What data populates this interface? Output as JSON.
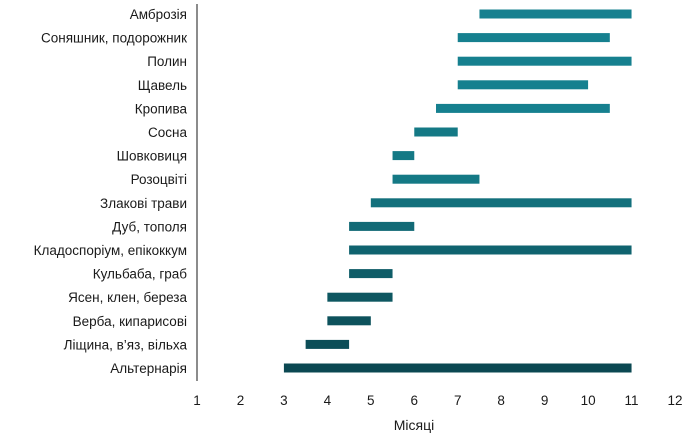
{
  "chart_data": {
    "type": "bar",
    "orientation": "horizontal-range",
    "xlabel": "Місяці",
    "xlim": [
      1,
      12
    ],
    "xticks": [
      1,
      2,
      3,
      4,
      5,
      6,
      7,
      8,
      9,
      10,
      11,
      12
    ],
    "grid": false,
    "categories": [
      "Амброзія",
      "Соняшник, подорожник",
      "Полин",
      "Щавель",
      "Кропива",
      "Сосна",
      "Шовковиця",
      "Розоцвіті",
      "Злакові трави",
      "Дуб, тополя",
      "Кладоспоріум, епікоккум",
      "Кульбаба, граб",
      "Ясен, клен, береза",
      "Верба, кипарисові",
      "Ліщина, в’яз, вільха",
      "Альтернарія"
    ],
    "ranges": [
      [
        7.5,
        11
      ],
      [
        7,
        10.5
      ],
      [
        7,
        11
      ],
      [
        7,
        10
      ],
      [
        6.5,
        10.5
      ],
      [
        6,
        7
      ],
      [
        5.5,
        6
      ],
      [
        5.5,
        7.5
      ],
      [
        5,
        11
      ],
      [
        4.5,
        6
      ],
      [
        4.5,
        11
      ],
      [
        4.5,
        5.5
      ],
      [
        4,
        5.5
      ],
      [
        4,
        5
      ],
      [
        3.5,
        4.5
      ],
      [
        3,
        11
      ]
    ],
    "colors": [
      "#16808f",
      "#16808f",
      "#16808f",
      "#16808f",
      "#16808f",
      "#147985",
      "#147985",
      "#147985",
      "#13707c",
      "#126a76",
      "#10636f",
      "#0f5d68",
      "#0e5761",
      "#0d525c",
      "#0c4d57",
      "#0b4852"
    ],
    "axis_color": "#1a1a1a"
  }
}
